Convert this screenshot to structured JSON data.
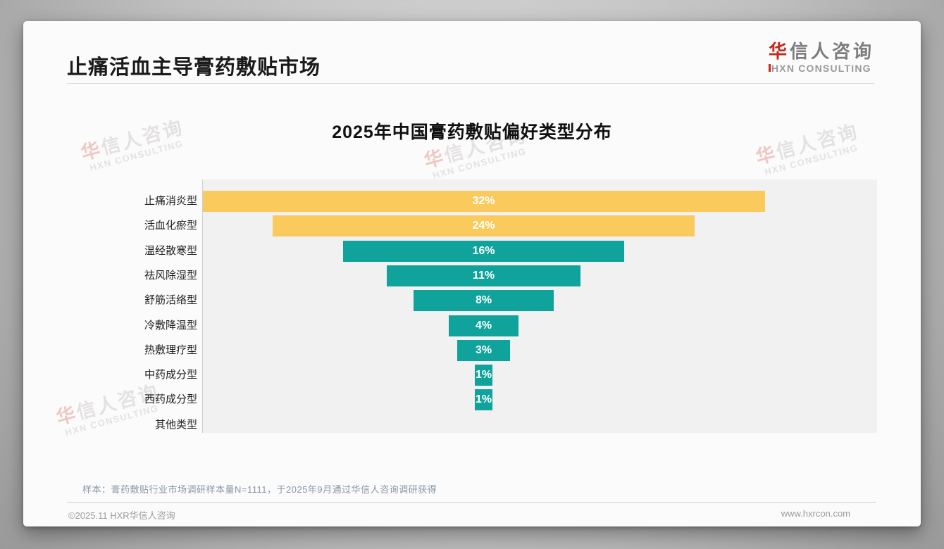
{
  "header": {
    "title": "止痛活血主导膏药敷贴市场"
  },
  "logo": {
    "cn_accent": "华",
    "cn_rest": "信人咨询",
    "en": "HXN CONSULTING"
  },
  "watermark": {
    "cn_accent": "华",
    "cn_rest": "信人咨询",
    "en": "HXN CONSULTING"
  },
  "chart_data": {
    "type": "bar",
    "variant": "centered-funnel-horizontal",
    "title": "2025年中国膏药敷贴偏好类型分布",
    "categories": [
      "止痛消炎型",
      "活血化瘀型",
      "温经散寒型",
      "祛风除湿型",
      "舒筋活络型",
      "冷敷降温型",
      "热敷理疗型",
      "中药成分型",
      "西药成分型",
      "其他类型"
    ],
    "values": [
      32,
      24,
      16,
      11,
      8,
      4,
      3,
      1,
      1,
      0
    ],
    "bar_labels": [
      "32%",
      "24%",
      "16%",
      "11%",
      "8%",
      "4%",
      "3%",
      "1%",
      "1%",
      ""
    ],
    "unit": "%",
    "xlim": [
      0,
      32
    ],
    "bar_colors": [
      "#facb5c",
      "#facb5c",
      "#10a39c",
      "#10a39c",
      "#10a39c",
      "#10a39c",
      "#10a39c",
      "#10a39c",
      "#10a39c",
      "#10a39c"
    ],
    "colors": {
      "highlight": "#facb5c",
      "default": "#10a39c",
      "value_label": "#ffffff"
    },
    "legend": "none",
    "grid": "off"
  },
  "note": {
    "text": "样本：膏药敷贴行业市场调研样本量N=1111，于2025年9月通过华信人咨询调研获得"
  },
  "footer": {
    "left": "©2025.11 HXR华信人咨询",
    "right": "www.hxrcon.com"
  }
}
